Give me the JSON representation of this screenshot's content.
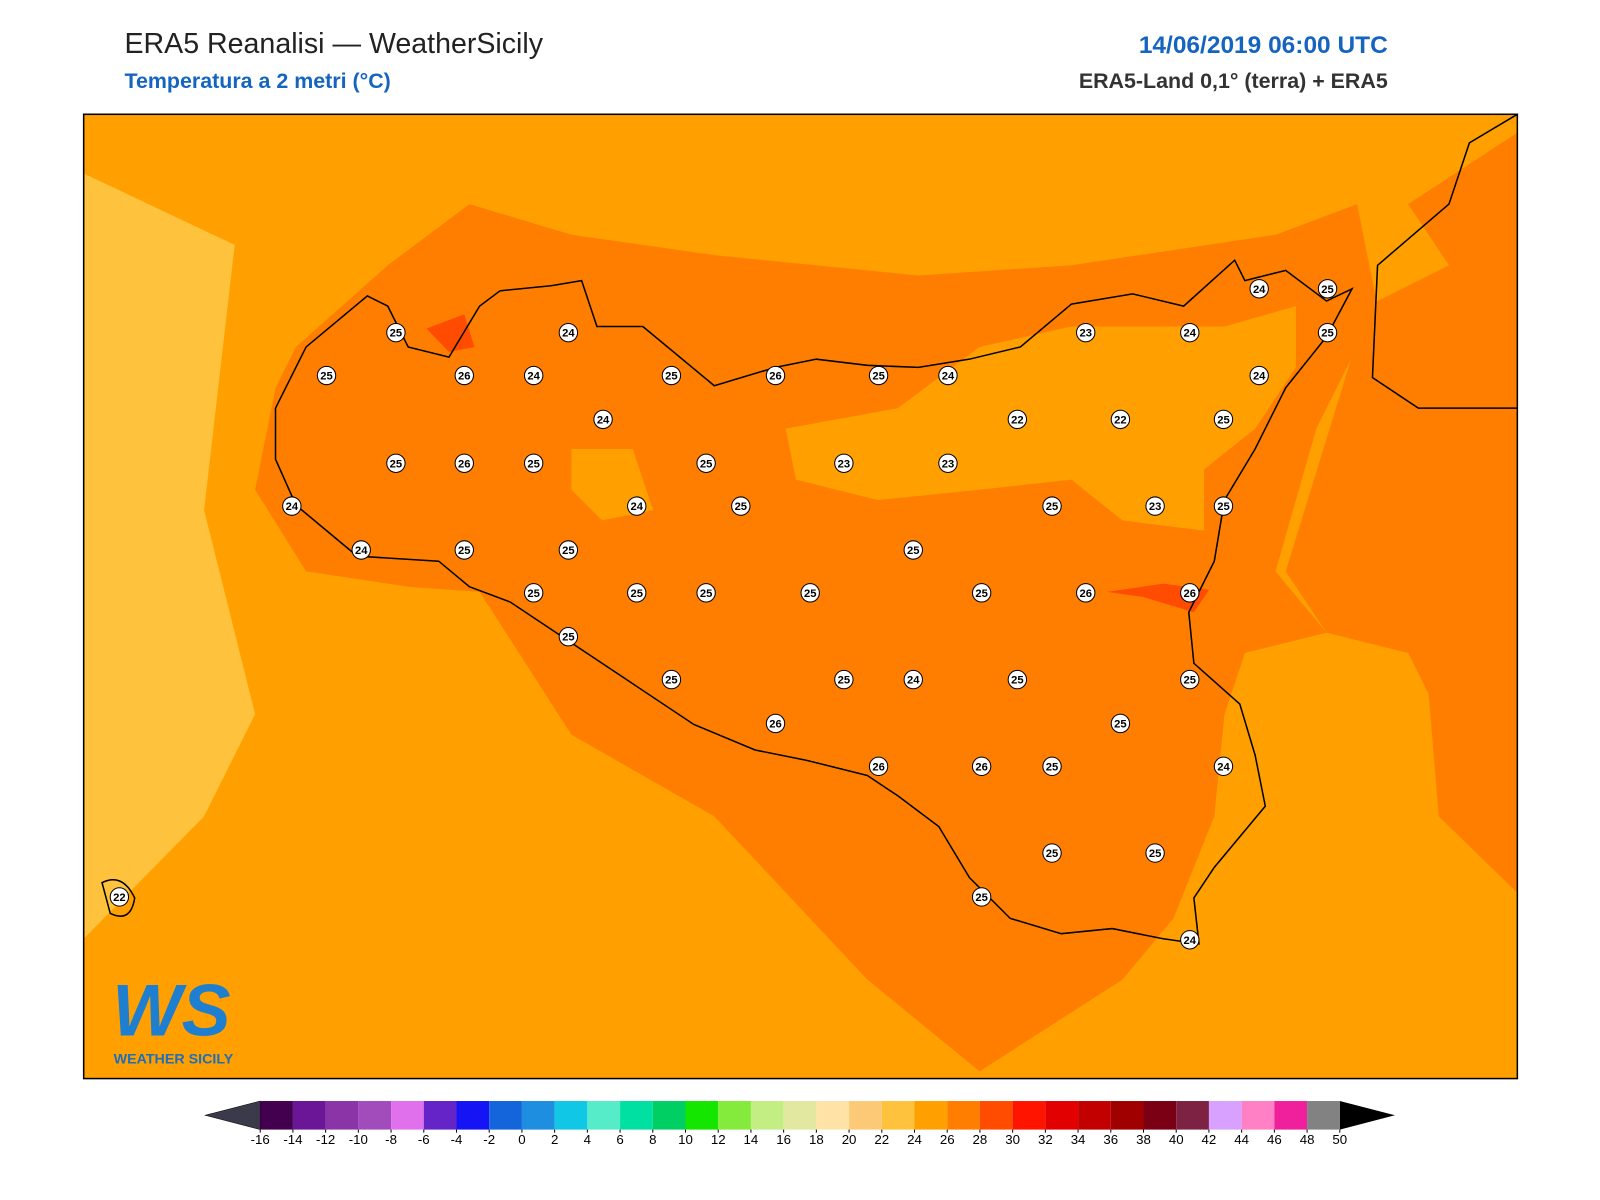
{
  "header": {
    "title": "ERA5 Reanalisi — WeatherSicily",
    "subtitle": "Temperatura a 2 metri (°C)",
    "date": "14/06/2019 06:00 UTC",
    "source": "ERA5-Land 0,1° (terra) + ERA5"
  },
  "logo": {
    "mark": "WS",
    "text": "WEATHER SICILY"
  },
  "stations": [
    25,
    24,
    25,
    26,
    24,
    25,
    26,
    25,
    24,
    23,
    24,
    24,
    25,
    25,
    24,
    24,
    22,
    22,
    25,
    25,
    26,
    25,
    25,
    23,
    23,
    24,
    24,
    25,
    25,
    23,
    25,
    24,
    25,
    25,
    25,
    25,
    25,
    25,
    25,
    25,
    26,
    26,
    25,
    25,
    25,
    24,
    25,
    25,
    25,
    26,
    26,
    26,
    25,
    24,
    25,
    25,
    25,
    24,
    22
  ],
  "colorbar": {
    "ticks": [
      -16,
      -14,
      -12,
      -10,
      -8,
      -6,
      -4,
      -2,
      0,
      2,
      4,
      6,
      8,
      10,
      12,
      14,
      16,
      18,
      20,
      22,
      24,
      26,
      28,
      30,
      32,
      34,
      36,
      38,
      40,
      42,
      44,
      46,
      48,
      50
    ],
    "colors": [
      "#42004f",
      "#6a1696",
      "#8a34a8",
      "#a24cbc",
      "#e070ec",
      "#6424c8",
      "#1414f4",
      "#1464dc",
      "#1e8ee0",
      "#10c8e6",
      "#56ecca",
      "#00e0a2",
      "#00d064",
      "#14e600",
      "#84ea3c",
      "#c2ee84",
      "#e2e8a0",
      "#ffe2a6",
      "#fcca76",
      "#ffc23c",
      "#ffa000",
      "#ff7e00",
      "#ff4c00",
      "#ff1400",
      "#e20000",
      "#c20000",
      "#a00000",
      "#7c0014",
      "#7e2244",
      "#d8a0ff",
      "#ff80c4",
      "#f0209c",
      "#828282",
      "#3c3c3c"
    ],
    "under_color": "#3a3a4a",
    "over_color": "#000000"
  }
}
